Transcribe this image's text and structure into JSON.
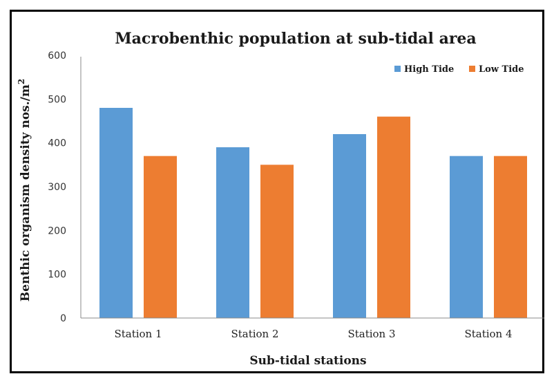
{
  "chart_data": {
    "type": "bar",
    "title": "Macrobenthic population at sub-tidal area",
    "xlabel": "Sub-tidal stations",
    "ylabel": "Benthic organism density nos./m",
    "ylabel_superscript": "2",
    "categories": [
      "Station 1",
      "Station 2",
      "Station 3",
      "Station 4"
    ],
    "series": [
      {
        "name": "High Tide",
        "color": "#5b9bd5",
        "values": [
          480,
          390,
          420,
          370
        ]
      },
      {
        "name": "Low Tide",
        "color": "#ed7d31",
        "values": [
          370,
          350,
          460,
          370
        ]
      }
    ],
    "ylim": [
      0,
      600
    ],
    "yticks": [
      0,
      100,
      200,
      300,
      400,
      500,
      600
    ],
    "grid": false,
    "legend_position": "top-right"
  }
}
